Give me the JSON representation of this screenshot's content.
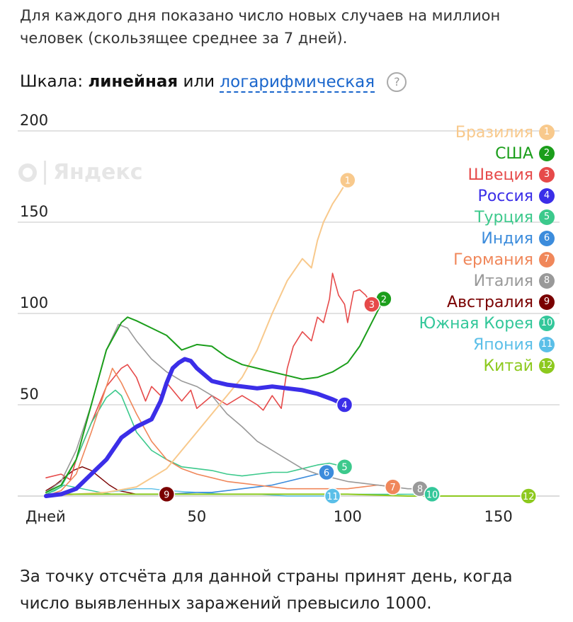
{
  "description": "Для каждого дня показано число новых случаев на миллион человек (скользящее среднее за 7 дней).",
  "scale": {
    "label": "Шкала:",
    "linear": "линейная",
    "or": "или",
    "log": "логарифмическая",
    "help": "?"
  },
  "watermark": "Яндекс",
  "footer": "За точку отсчёта для данной страны принят день, когда число выявленных заражений превысило 1000.",
  "chart_data": {
    "type": "line",
    "xlabel": "Дней",
    "xlim": [
      0,
      165
    ],
    "ylim": [
      0,
      200
    ],
    "xticks": [
      50,
      100,
      150
    ],
    "yticks": [
      50,
      100,
      150,
      200
    ],
    "grid": true,
    "legend_position": "top-right",
    "series": [
      {
        "name": "Бразилия",
        "num": "1",
        "color": "#f8c98c",
        "width": 2,
        "points": [
          [
            0,
            0
          ],
          [
            10,
            1
          ],
          [
            20,
            2
          ],
          [
            30,
            5
          ],
          [
            40,
            15
          ],
          [
            45,
            25
          ],
          [
            50,
            35
          ],
          [
            55,
            45
          ],
          [
            60,
            55
          ],
          [
            65,
            65
          ],
          [
            70,
            80
          ],
          [
            75,
            100
          ],
          [
            80,
            118
          ],
          [
            85,
            130
          ],
          [
            88,
            125
          ],
          [
            90,
            140
          ],
          [
            92,
            150
          ],
          [
            95,
            160
          ],
          [
            97,
            165
          ],
          [
            100,
            173
          ]
        ]
      },
      {
        "name": "США",
        "num": "2",
        "color": "#1b9e1b",
        "width": 2,
        "points": [
          [
            0,
            2
          ],
          [
            5,
            6
          ],
          [
            10,
            20
          ],
          [
            15,
            50
          ],
          [
            20,
            80
          ],
          [
            25,
            95
          ],
          [
            27,
            98
          ],
          [
            30,
            96
          ],
          [
            35,
            92
          ],
          [
            40,
            88
          ],
          [
            45,
            80
          ],
          [
            50,
            83
          ],
          [
            55,
            82
          ],
          [
            60,
            76
          ],
          [
            65,
            72
          ],
          [
            70,
            70
          ],
          [
            75,
            68
          ],
          [
            80,
            66
          ],
          [
            85,
            64
          ],
          [
            90,
            65
          ],
          [
            95,
            68
          ],
          [
            100,
            73
          ],
          [
            104,
            82
          ],
          [
            108,
            95
          ],
          [
            112,
            108
          ]
        ]
      },
      {
        "name": "Швеция",
        "num": "3",
        "color": "#e64a4a",
        "width": 1.6,
        "points": [
          [
            0,
            10
          ],
          [
            5,
            12
          ],
          [
            8,
            9
          ],
          [
            10,
            20
          ],
          [
            15,
            40
          ],
          [
            20,
            60
          ],
          [
            25,
            70
          ],
          [
            27,
            72
          ],
          [
            30,
            65
          ],
          [
            33,
            52
          ],
          [
            35,
            60
          ],
          [
            38,
            55
          ],
          [
            40,
            62
          ],
          [
            45,
            52
          ],
          [
            48,
            58
          ],
          [
            50,
            48
          ],
          [
            55,
            55
          ],
          [
            60,
            50
          ],
          [
            65,
            55
          ],
          [
            70,
            50
          ],
          [
            72,
            47
          ],
          [
            75,
            55
          ],
          [
            78,
            48
          ],
          [
            80,
            70
          ],
          [
            82,
            82
          ],
          [
            85,
            90
          ],
          [
            88,
            85
          ],
          [
            90,
            98
          ],
          [
            92,
            95
          ],
          [
            94,
            108
          ],
          [
            95,
            122
          ],
          [
            97,
            110
          ],
          [
            99,
            105
          ],
          [
            100,
            95
          ],
          [
            102,
            112
          ],
          [
            104,
            113
          ],
          [
            106,
            110
          ],
          [
            108,
            105
          ]
        ]
      },
      {
        "name": "Россия",
        "num": "4",
        "color": "#3b2ee8",
        "width": 6,
        "points": [
          [
            0,
            0
          ],
          [
            5,
            1
          ],
          [
            10,
            4
          ],
          [
            15,
            12
          ],
          [
            20,
            20
          ],
          [
            25,
            32
          ],
          [
            30,
            38
          ],
          [
            35,
            42
          ],
          [
            38,
            52
          ],
          [
            40,
            62
          ],
          [
            42,
            70
          ],
          [
            44,
            73
          ],
          [
            46,
            75
          ],
          [
            48,
            74
          ],
          [
            50,
            70
          ],
          [
            55,
            63
          ],
          [
            60,
            61
          ],
          [
            65,
            60
          ],
          [
            70,
            59
          ],
          [
            75,
            60
          ],
          [
            80,
            59
          ],
          [
            85,
            58
          ],
          [
            90,
            56
          ],
          [
            95,
            53
          ],
          [
            99,
            50
          ]
        ]
      },
      {
        "name": "Турция",
        "num": "5",
        "color": "#3cc98c",
        "width": 1.6,
        "points": [
          [
            0,
            1
          ],
          [
            5,
            5
          ],
          [
            10,
            20
          ],
          [
            15,
            40
          ],
          [
            20,
            54
          ],
          [
            23,
            58
          ],
          [
            25,
            55
          ],
          [
            30,
            35
          ],
          [
            35,
            25
          ],
          [
            40,
            20
          ],
          [
            45,
            16
          ],
          [
            50,
            15
          ],
          [
            55,
            14
          ],
          [
            60,
            12
          ],
          [
            65,
            11
          ],
          [
            70,
            12
          ],
          [
            75,
            13
          ],
          [
            80,
            13
          ],
          [
            85,
            15
          ],
          [
            90,
            17
          ],
          [
            94,
            18
          ],
          [
            99,
            16
          ]
        ]
      },
      {
        "name": "Индия",
        "num": "6",
        "color": "#3c8cdc",
        "width": 1.6,
        "points": [
          [
            0,
            0
          ],
          [
            10,
            1
          ],
          [
            20,
            1
          ],
          [
            30,
            1
          ],
          [
            40,
            1
          ],
          [
            50,
            2
          ],
          [
            55,
            2
          ],
          [
            60,
            3
          ],
          [
            65,
            4
          ],
          [
            70,
            5
          ],
          [
            75,
            6
          ],
          [
            80,
            8
          ],
          [
            85,
            10
          ],
          [
            90,
            12
          ],
          [
            93,
            13
          ]
        ]
      },
      {
        "name": "Германия",
        "num": "7",
        "color": "#f0875a",
        "width": 1.6,
        "points": [
          [
            0,
            0
          ],
          [
            5,
            3
          ],
          [
            10,
            12
          ],
          [
            15,
            35
          ],
          [
            20,
            60
          ],
          [
            22,
            70
          ],
          [
            25,
            62
          ],
          [
            30,
            45
          ],
          [
            35,
            30
          ],
          [
            40,
            20
          ],
          [
            45,
            15
          ],
          [
            50,
            12
          ],
          [
            55,
            10
          ],
          [
            60,
            8
          ],
          [
            65,
            7
          ],
          [
            70,
            6
          ],
          [
            75,
            5
          ],
          [
            80,
            4
          ],
          [
            90,
            4
          ],
          [
            100,
            4
          ],
          [
            105,
            5
          ],
          [
            110,
            6
          ],
          [
            115,
            5
          ]
        ]
      },
      {
        "name": "Италия",
        "num": "8",
        "color": "#999999",
        "width": 1.6,
        "points": [
          [
            0,
            2
          ],
          [
            5,
            8
          ],
          [
            10,
            25
          ],
          [
            15,
            50
          ],
          [
            20,
            80
          ],
          [
            24,
            94
          ],
          [
            27,
            92
          ],
          [
            30,
            85
          ],
          [
            35,
            75
          ],
          [
            40,
            68
          ],
          [
            45,
            63
          ],
          [
            50,
            60
          ],
          [
            55,
            55
          ],
          [
            60,
            45
          ],
          [
            65,
            38
          ],
          [
            70,
            30
          ],
          [
            75,
            25
          ],
          [
            80,
            20
          ],
          [
            85,
            15
          ],
          [
            90,
            12
          ],
          [
            95,
            10
          ],
          [
            100,
            8
          ],
          [
            105,
            7
          ],
          [
            110,
            6
          ],
          [
            115,
            5
          ],
          [
            120,
            4
          ],
          [
            124,
            4
          ]
        ]
      },
      {
        "name": "Австралия",
        "num": "9",
        "color": "#7a0000",
        "width": 1.4,
        "points": [
          [
            0,
            3
          ],
          [
            3,
            6
          ],
          [
            6,
            10
          ],
          [
            9,
            14
          ],
          [
            12,
            16
          ],
          [
            15,
            14
          ],
          [
            18,
            10
          ],
          [
            21,
            6
          ],
          [
            24,
            3
          ],
          [
            27,
            2
          ],
          [
            30,
            1
          ],
          [
            35,
            1
          ],
          [
            40,
            1
          ]
        ]
      },
      {
        "name": "Южная Корея",
        "num": "10",
        "color": "#33c79a",
        "width": 1.4,
        "points": [
          [
            0,
            1
          ],
          [
            3,
            3
          ],
          [
            6,
            6
          ],
          [
            9,
            5
          ],
          [
            12,
            4
          ],
          [
            15,
            3
          ],
          [
            18,
            2
          ],
          [
            22,
            1
          ],
          [
            30,
            1
          ],
          [
            40,
            1
          ],
          [
            60,
            1
          ],
          [
            80,
            1
          ],
          [
            100,
            1
          ],
          [
            120,
            1
          ],
          [
            128,
            1
          ]
        ]
      },
      {
        "name": "Япония",
        "num": "11",
        "color": "#5bbfe8",
        "width": 1.4,
        "points": [
          [
            0,
            0
          ],
          [
            10,
            1
          ],
          [
            20,
            2
          ],
          [
            25,
            3
          ],
          [
            30,
            4
          ],
          [
            35,
            4
          ],
          [
            40,
            3
          ],
          [
            50,
            2
          ],
          [
            60,
            1
          ],
          [
            70,
            1
          ],
          [
            80,
            0
          ],
          [
            95,
            0
          ]
        ]
      },
      {
        "name": "Китай",
        "num": "12",
        "color": "#8dc91e",
        "width": 2,
        "points": [
          [
            0,
            1
          ],
          [
            5,
            1
          ],
          [
            10,
            1
          ],
          [
            20,
            1
          ],
          [
            40,
            1
          ],
          [
            60,
            1
          ],
          [
            80,
            1
          ],
          [
            100,
            1
          ],
          [
            120,
            0
          ],
          [
            140,
            0
          ],
          [
            160,
            0
          ]
        ]
      }
    ]
  }
}
